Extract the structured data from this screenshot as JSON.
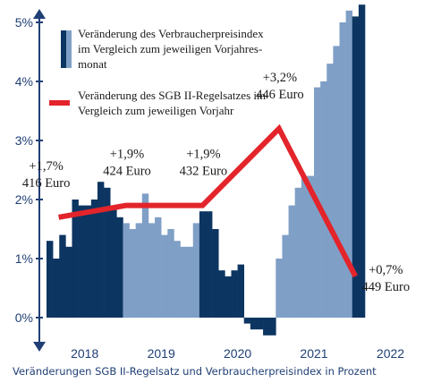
{
  "chart_data": {
    "type": "bar",
    "title": "",
    "caption": "Veränderungen SGB II-Regelsatz und Verbraucherpreisindex in Prozent",
    "xlabel": "",
    "ylabel": "",
    "ylim": [
      -0.4,
      5.3
    ],
    "y_ticks": [
      0,
      1,
      2,
      3,
      4,
      5
    ],
    "y_tick_labels": [
      "0%",
      "1%",
      "2%",
      "3%",
      "4%",
      "5%"
    ],
    "x_tick_labels": [
      "2018",
      "2019",
      "2020",
      "2021",
      "2022"
    ],
    "grid": false,
    "legend": [
      {
        "series": "cpi",
        "text": [
          "Veränderung des Verbraucherpreisindex",
          "im Vergleich zum jeweiligen Vorjahres-",
          "monat"
        ]
      },
      {
        "series": "regelsatz",
        "text": [
          "Veränderung des SGB II-Regelsatzes im",
          "Vergleich zum jeweiligen Vorjahr"
        ]
      }
    ],
    "series": [
      {
        "id": "cpi",
        "type": "bar",
        "colors": {
          "dark": "#0d3561",
          "light": "#7f9fc6"
        },
        "months": [
          "2018-01",
          "2018-02",
          "2018-03",
          "2018-04",
          "2018-05",
          "2018-06",
          "2018-07",
          "2018-08",
          "2018-09",
          "2018-10",
          "2018-11",
          "2018-12",
          "2019-01",
          "2019-02",
          "2019-03",
          "2019-04",
          "2019-05",
          "2019-06",
          "2019-07",
          "2019-08",
          "2019-09",
          "2019-10",
          "2019-11",
          "2019-12",
          "2020-01",
          "2020-02",
          "2020-03",
          "2020-04",
          "2020-05",
          "2020-06",
          "2020-07",
          "2020-08",
          "2020-09",
          "2020-10",
          "2020-11",
          "2020-12",
          "2021-01",
          "2021-02",
          "2021-03",
          "2021-04",
          "2021-05",
          "2021-06",
          "2021-07",
          "2021-08",
          "2021-09",
          "2021-10",
          "2021-11",
          "2021-12",
          "2022-01",
          "2022-02"
        ],
        "values": [
          1.3,
          1.0,
          1.4,
          1.2,
          2.0,
          1.9,
          1.9,
          2.0,
          2.3,
          2.2,
          1.9,
          1.7,
          1.6,
          1.5,
          1.6,
          2.1,
          1.6,
          1.7,
          1.4,
          1.5,
          1.3,
          1.2,
          1.2,
          1.6,
          1.8,
          1.8,
          1.5,
          0.8,
          0.7,
          0.8,
          0.9,
          -0.1,
          -0.2,
          -0.2,
          -0.3,
          -0.3,
          1.0,
          1.4,
          1.9,
          2.2,
          2.4,
          2.4,
          3.9,
          4.0,
          4.3,
          4.6,
          5.0,
          5.2,
          5.1,
          5.3
        ],
        "shade": [
          "dark",
          "dark",
          "dark",
          "dark",
          "dark",
          "dark",
          "dark",
          "dark",
          "dark",
          "dark",
          "dark",
          "dark",
          "light",
          "light",
          "light",
          "light",
          "light",
          "light",
          "light",
          "light",
          "light",
          "light",
          "light",
          "light",
          "dark",
          "dark",
          "dark",
          "dark",
          "dark",
          "dark",
          "dark",
          "dark",
          "dark",
          "dark",
          "dark",
          "dark",
          "light",
          "light",
          "light",
          "light",
          "light",
          "light",
          "light",
          "light",
          "light",
          "light",
          "light",
          "light",
          "dark",
          "dark"
        ]
      },
      {
        "id": "regelsatz",
        "type": "line",
        "color": "#e3242b",
        "x": [
          "2018-01",
          "2019-01",
          "2020-01",
          "2021-01",
          "2022-01"
        ],
        "y": [
          1.7,
          1.9,
          1.9,
          3.2,
          0.7
        ],
        "labels": [
          {
            "change": "+1,7%",
            "amount": "416 Euro"
          },
          {
            "change": "+1,9%",
            "amount": "424 Euro"
          },
          {
            "change": "+1,9%",
            "amount": "432 Euro"
          },
          {
            "change": "+3,2%",
            "amount": "446 Euro"
          },
          {
            "change": "+0,7%",
            "amount": "449 Euro"
          }
        ]
      }
    ]
  }
}
